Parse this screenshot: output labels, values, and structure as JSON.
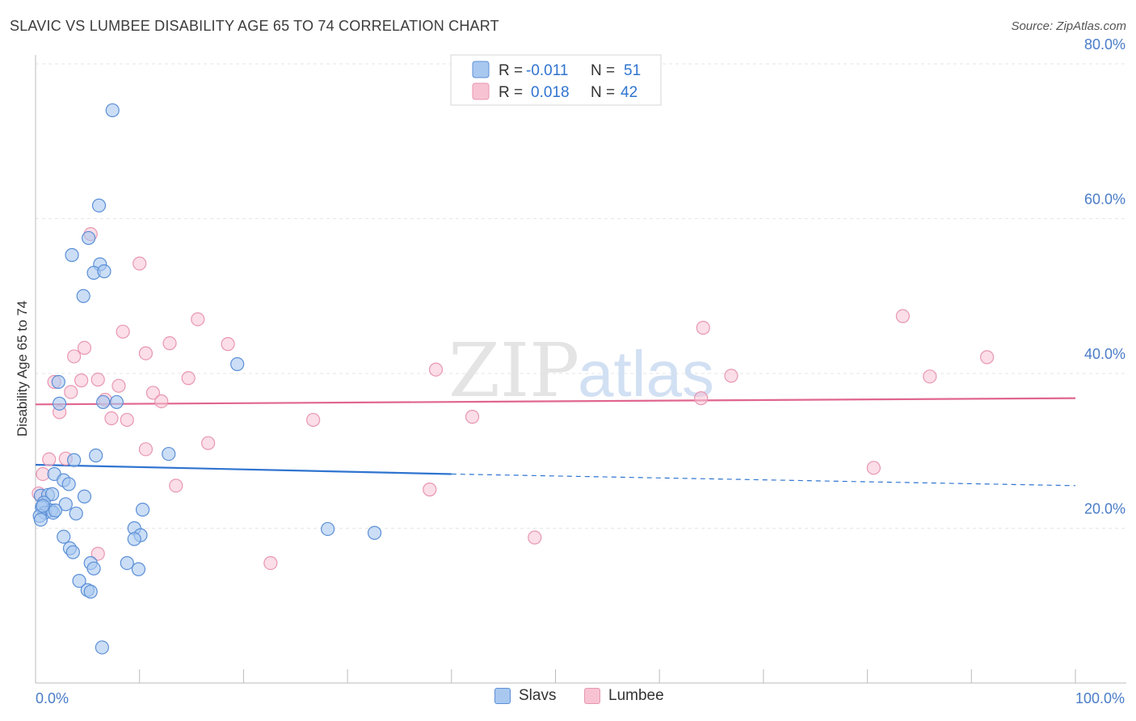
{
  "title": "SLAVIC VS LUMBEE DISABILITY AGE 65 TO 74 CORRELATION CHART",
  "source": "Source: ZipAtlas.com",
  "watermark": {
    "zip": "ZIP",
    "atlas": "atlas"
  },
  "colors": {
    "slavs_fill": "#a9c8f0",
    "slavs_stroke": "#5b8fd6",
    "slavs_line": "#2f74d0",
    "lumbee_fill": "#f7c3d3",
    "lumbee_stroke": "#e896b2",
    "lumbee_line": "#e0668e",
    "tick_label": "#4a7cc7"
  },
  "legend": {
    "rows": [
      {
        "r_label": "R = ",
        "r_value": "-0.011",
        "n_label": "N = ",
        "n_value": "51"
      },
      {
        "r_label": "R = ",
        "r_value": "0.018",
        "n_label": "N = ",
        "n_value": "42"
      }
    ]
  },
  "bottom_legend": {
    "slavs": "Slavs",
    "lumbee": "Lumbee"
  },
  "chart_data": {
    "type": "scatter",
    "title": "SLAVIC VS LUMBEE DISABILITY AGE 65 TO 74 CORRELATION CHART",
    "xlabel": "",
    "ylabel": "Disability Age 65 to 74",
    "xlim": [
      0,
      100
    ],
    "ylim": [
      0,
      82
    ],
    "x_tick_labels": [
      "0.0%",
      "100.0%"
    ],
    "y_ticks": [
      20,
      40,
      60,
      80
    ],
    "y_tick_labels": [
      "20.0%",
      "40.0%",
      "60.0%",
      "80.0%"
    ],
    "grid": true,
    "legend_position": "top-center",
    "series": [
      {
        "name": "Slavs",
        "r": -0.011,
        "n": 51,
        "trend": {
          "x0": 0,
          "y0": 28.2,
          "x1": 40,
          "y1": 27.0,
          "dashed_to_x": 100,
          "dashed_to_y": 25.5
        },
        "points": [
          [
            7.4,
            74.0
          ],
          [
            6.1,
            61.7
          ],
          [
            5.1,
            57.5
          ],
          [
            3.5,
            55.3
          ],
          [
            6.2,
            54.1
          ],
          [
            5.6,
            53.0
          ],
          [
            6.6,
            53.2
          ],
          [
            4.6,
            50.0
          ],
          [
            19.4,
            41.2
          ],
          [
            2.2,
            38.9
          ],
          [
            2.3,
            36.1
          ],
          [
            6.5,
            36.3
          ],
          [
            7.8,
            36.3
          ],
          [
            5.8,
            29.4
          ],
          [
            12.8,
            29.6
          ],
          [
            3.7,
            28.8
          ],
          [
            1.8,
            27.0
          ],
          [
            2.7,
            26.2
          ],
          [
            3.2,
            25.7
          ],
          [
            0.5,
            24.2
          ],
          [
            1.2,
            24.3
          ],
          [
            1.6,
            24.4
          ],
          [
            4.7,
            24.1
          ],
          [
            0.8,
            23.3
          ],
          [
            2.9,
            23.1
          ],
          [
            0.6,
            22.7
          ],
          [
            1.5,
            22.3
          ],
          [
            0.9,
            22.0
          ],
          [
            0.4,
            21.6
          ],
          [
            1.7,
            22.0
          ],
          [
            3.9,
            21.9
          ],
          [
            0.5,
            21.1
          ],
          [
            10.3,
            22.4
          ],
          [
            9.5,
            20.0
          ],
          [
            10.1,
            19.1
          ],
          [
            9.5,
            18.6
          ],
          [
            2.7,
            18.9
          ],
          [
            28.1,
            19.9
          ],
          [
            32.6,
            19.4
          ],
          [
            3.3,
            17.4
          ],
          [
            3.6,
            16.9
          ],
          [
            5.3,
            15.5
          ],
          [
            8.8,
            15.5
          ],
          [
            5.6,
            14.8
          ],
          [
            9.9,
            14.7
          ],
          [
            4.2,
            13.2
          ],
          [
            5.0,
            12.0
          ],
          [
            5.3,
            11.8
          ],
          [
            6.4,
            4.6
          ],
          [
            1.9,
            22.3
          ],
          [
            0.7,
            22.9
          ]
        ]
      },
      {
        "name": "Lumbee",
        "r": 0.018,
        "n": 42,
        "trend": {
          "x0": 0,
          "y0": 36.0,
          "x1": 100,
          "y1": 36.8
        },
        "points": [
          [
            5.3,
            58.0
          ],
          [
            10.0,
            54.2
          ],
          [
            15.6,
            47.0
          ],
          [
            64.2,
            45.9
          ],
          [
            83.4,
            47.4
          ],
          [
            8.4,
            45.4
          ],
          [
            12.9,
            43.9
          ],
          [
            18.5,
            43.8
          ],
          [
            4.7,
            43.3
          ],
          [
            10.6,
            42.6
          ],
          [
            3.7,
            42.2
          ],
          [
            91.5,
            42.1
          ],
          [
            38.5,
            40.5
          ],
          [
            66.9,
            39.7
          ],
          [
            86.0,
            39.6
          ],
          [
            14.7,
            39.4
          ],
          [
            6.0,
            39.2
          ],
          [
            4.4,
            39.1
          ],
          [
            1.8,
            38.9
          ],
          [
            8.0,
            38.4
          ],
          [
            11.3,
            37.5
          ],
          [
            3.4,
            37.6
          ],
          [
            6.7,
            36.6
          ],
          [
            12.1,
            36.4
          ],
          [
            64.0,
            36.8
          ],
          [
            2.3,
            35.0
          ],
          [
            7.3,
            34.2
          ],
          [
            8.8,
            34.0
          ],
          [
            26.7,
            34.0
          ],
          [
            42.0,
            34.4
          ],
          [
            16.6,
            31.0
          ],
          [
            10.6,
            30.2
          ],
          [
            1.3,
            28.9
          ],
          [
            2.9,
            29.0
          ],
          [
            0.7,
            27.0
          ],
          [
            80.6,
            27.8
          ],
          [
            13.5,
            25.5
          ],
          [
            37.9,
            25.0
          ],
          [
            0.3,
            24.5
          ],
          [
            48.0,
            18.8
          ],
          [
            6.0,
            16.7
          ],
          [
            22.6,
            15.5
          ]
        ]
      }
    ]
  }
}
